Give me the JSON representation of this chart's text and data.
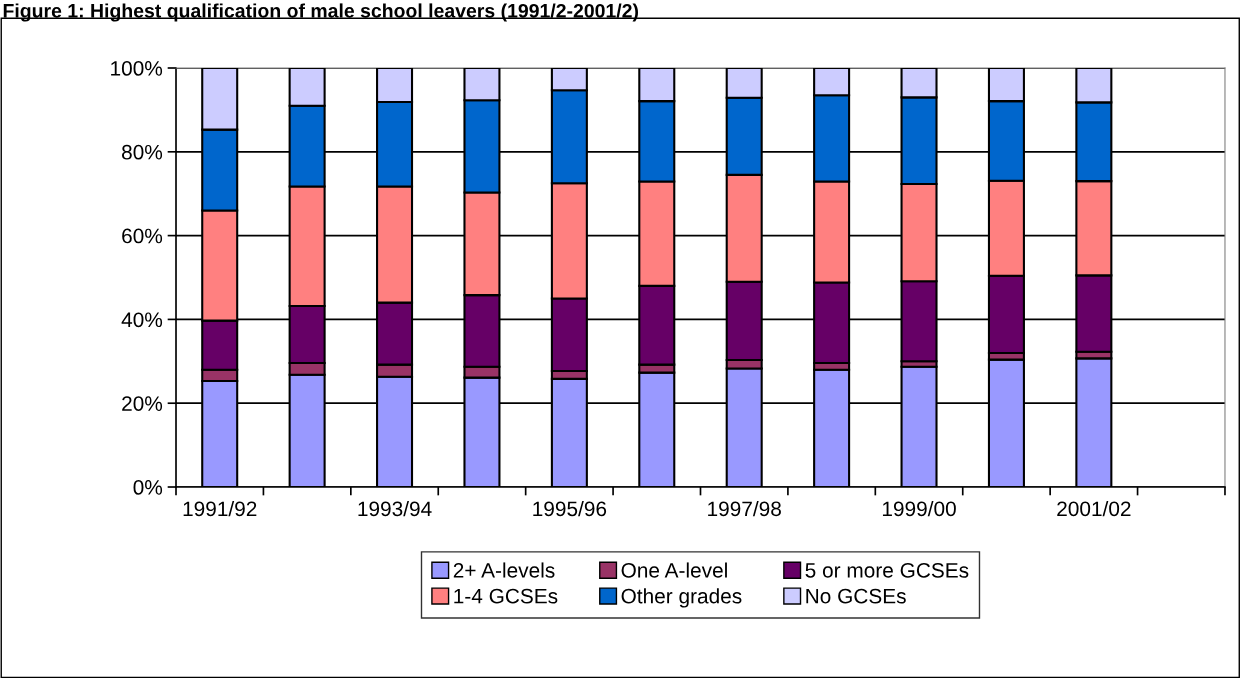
{
  "chart_data": {
    "type": "bar",
    "stacked": true,
    "title": "Figure 1: Highest qualification of male school leavers (1991/2-2001/2)",
    "categories": [
      "1991/92",
      null,
      "1993/94",
      null,
      "1995/96",
      null,
      "1997/98",
      null,
      "1999/00",
      null,
      "2001/02",
      null
    ],
    "series": [
      {
        "name": "2+ A-levels",
        "color": "#9999ff",
        "values": [
          25.3,
          26.8,
          26.3,
          26.1,
          25.8,
          27.3,
          28.3,
          28.0,
          28.7,
          30.4,
          30.7,
          null
        ]
      },
      {
        "name": "One A-level",
        "color": "#993366",
        "values": [
          2.7,
          2.8,
          2.9,
          2.6,
          1.9,
          1.9,
          2.0,
          1.6,
          1.3,
          1.6,
          1.6,
          null
        ]
      },
      {
        "name": "5 or more GCSEs",
        "color": "#660066",
        "values": [
          11.7,
          13.6,
          14.8,
          17.1,
          17.3,
          18.8,
          18.7,
          19.2,
          19.1,
          18.4,
          18.2,
          null
        ]
      },
      {
        "name": "1-4 GCSEs",
        "color": "#ff8080",
        "values": [
          26.3,
          28.5,
          27.7,
          24.5,
          27.5,
          24.9,
          25.5,
          24.1,
          23.2,
          22.7,
          22.5,
          null
        ]
      },
      {
        "name": "Other grades",
        "color": "#0066cc",
        "values": [
          19.3,
          19.3,
          20.2,
          22.0,
          22.2,
          19.2,
          18.4,
          20.6,
          20.7,
          19.0,
          18.8,
          null
        ]
      },
      {
        "name": "No GCSEs",
        "color": "#ccccff",
        "values": [
          14.7,
          9.0,
          8.1,
          7.7,
          5.3,
          7.9,
          7.1,
          6.5,
          7.0,
          7.9,
          8.2,
          null
        ]
      }
    ],
    "ylim": [
      0,
      100
    ],
    "yticks": [
      {
        "value": 0,
        "label": "0%"
      },
      {
        "value": 20,
        "label": "20%"
      },
      {
        "value": 40,
        "label": "40%"
      },
      {
        "value": 60,
        "label": "60%"
      },
      {
        "value": 80,
        "label": "80%"
      },
      {
        "value": 100,
        "label": "100%"
      }
    ],
    "grid": "y",
    "legend": "bottom"
  }
}
